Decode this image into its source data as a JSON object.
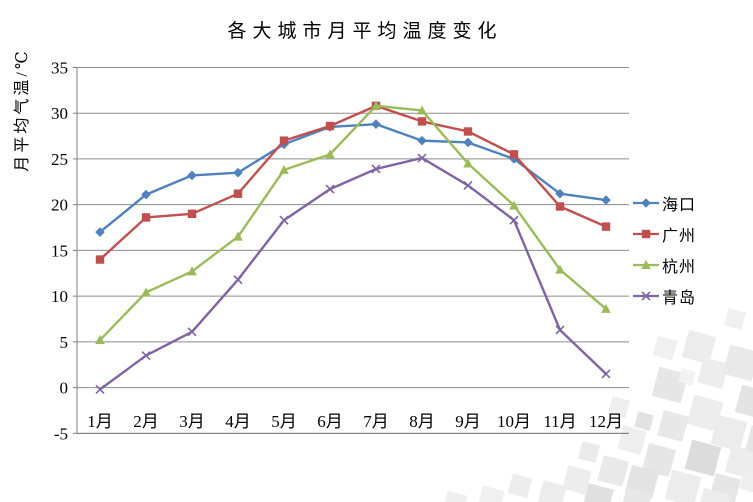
{
  "chart_data": {
    "type": "line",
    "title": "各大城市月平均温度变化",
    "ylabel": "月平均气温/℃",
    "xlabel": "",
    "categories": [
      "1月",
      "2月",
      "3月",
      "4月",
      "5月",
      "6月",
      "7月",
      "8月",
      "9月",
      "10月",
      "11月",
      "12月"
    ],
    "series": [
      {
        "name": "海口",
        "marker": "diamond",
        "color": "#4F81BD",
        "values": [
          17.0,
          21.1,
          23.2,
          23.5,
          26.6,
          28.5,
          28.8,
          27.0,
          26.8,
          25.0,
          21.2,
          20.5
        ]
      },
      {
        "name": "广州",
        "marker": "square",
        "color": "#C0504D",
        "values": [
          14.0,
          18.6,
          19.0,
          21.2,
          27.0,
          28.6,
          30.8,
          29.1,
          28.0,
          25.5,
          19.8,
          17.6
        ]
      },
      {
        "name": "杭州",
        "marker": "triangle",
        "color": "#9BBB59",
        "values": [
          5.2,
          10.4,
          12.7,
          16.5,
          23.8,
          25.5,
          30.8,
          30.3,
          24.5,
          19.9,
          12.9,
          8.6
        ]
      },
      {
        "name": "青岛",
        "marker": "x",
        "color": "#8064A2",
        "values": [
          -0.2,
          3.5,
          6.1,
          11.8,
          18.3,
          21.7,
          23.9,
          25.1,
          22.1,
          18.3,
          6.3,
          1.5
        ]
      }
    ],
    "ylim": [
      -5,
      35
    ],
    "ytick_step": 5,
    "grid": true,
    "legend_position": "right",
    "axis_color": "#7f7f7f",
    "gridline_color": "#8c8c8c"
  }
}
